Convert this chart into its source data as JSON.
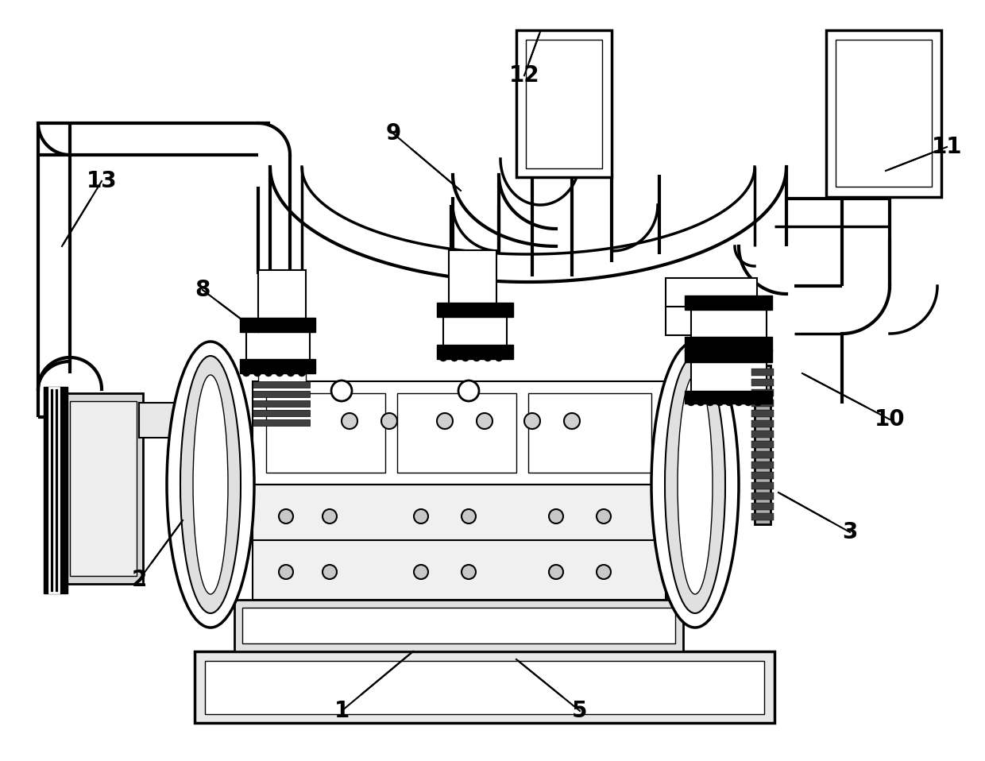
{
  "bg_color": "#ffffff",
  "lw": 2.0,
  "label_fontsize": 20
}
